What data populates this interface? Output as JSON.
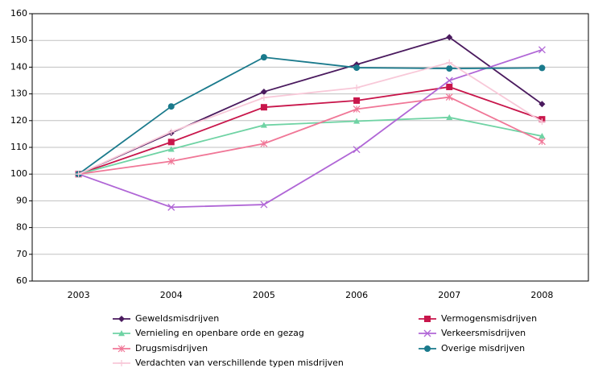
{
  "chart_data": {
    "type": "line",
    "categories": [
      "2003",
      "2004",
      "2005",
      "2006",
      "2007",
      "2008"
    ],
    "ylim": [
      60,
      160
    ],
    "yticks": [
      60,
      70,
      80,
      90,
      100,
      110,
      120,
      130,
      140,
      150,
      160
    ],
    "grid": true,
    "legend": "bottom",
    "series": [
      {
        "name": "Geweldsmisdrijven",
        "color": "#4a1a5e",
        "marker": "diamond",
        "values": [
          100,
          115.4,
          130.8,
          141,
          151.2,
          126.2
        ]
      },
      {
        "name": "Vermogensmisdrijven",
        "color": "#c8164b",
        "marker": "square",
        "values": [
          100,
          112,
          125,
          127.5,
          132.6,
          120.5
        ]
      },
      {
        "name": "Vernieling en openbare orde en gezag",
        "color": "#6fd3a4",
        "marker": "triangle",
        "values": [
          100,
          109.3,
          118.3,
          119.8,
          121.2,
          114.2
        ]
      },
      {
        "name": "Verkeersmisdrijven",
        "color": "#b066d6",
        "marker": "x",
        "values": [
          100,
          87.6,
          88.6,
          109.2,
          135,
          146.5
        ]
      },
      {
        "name": "Drugsmisdrijven",
        "color": "#f07797",
        "marker": "star",
        "values": [
          100,
          104.8,
          111.4,
          124.3,
          128.8,
          112.2
        ]
      },
      {
        "name": "Overige misdrijven",
        "color": "#1a7a8c",
        "marker": "circle",
        "values": [
          100,
          125.3,
          143.7,
          139.8,
          139.5,
          139.7
        ]
      },
      {
        "name": "Verdachten van verschillende typen misdrijven",
        "color": "#f8c8d8",
        "marker": "plus",
        "values": [
          100,
          115.8,
          128.6,
          132.3,
          141.7,
          119.6
        ]
      }
    ]
  }
}
